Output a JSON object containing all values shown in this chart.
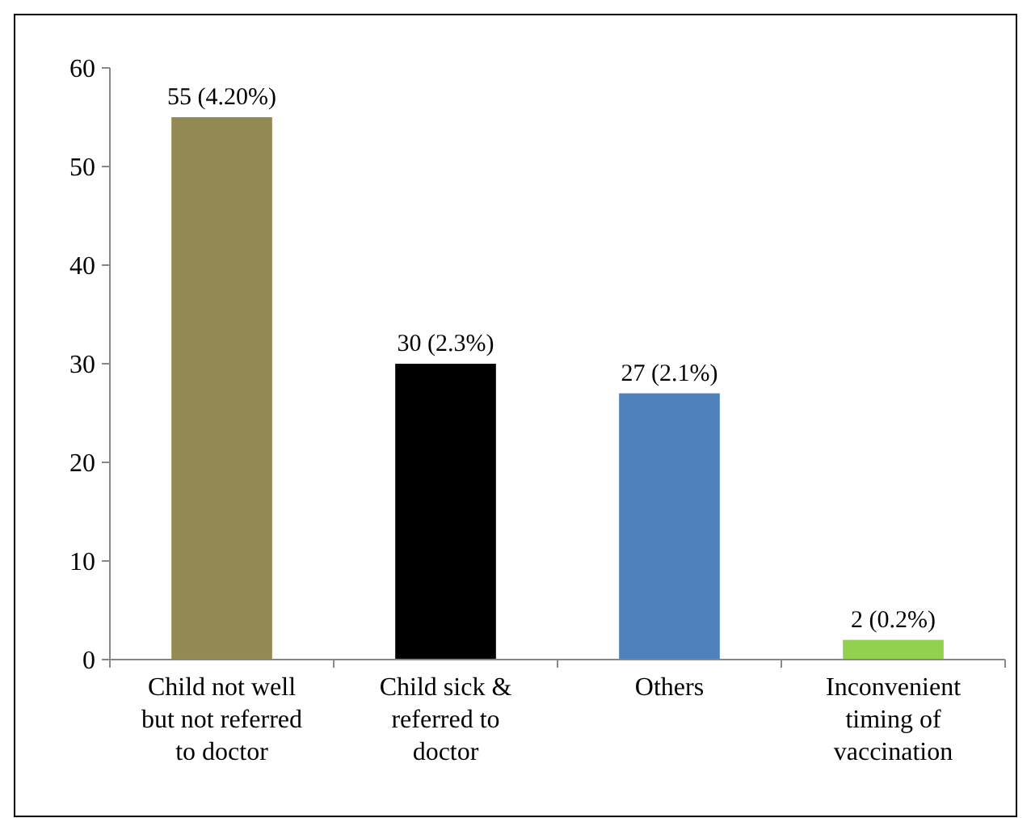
{
  "chart_data": {
    "type": "bar",
    "categories": [
      "Child not well but not referred to doctor",
      "Child sick & referred to doctor",
      "Others",
      "Inconvenient timing of vaccination"
    ],
    "values": [
      55,
      30,
      27,
      2
    ],
    "colors": [
      "#938953",
      "#000000",
      "#4f81bd",
      "#92d050"
    ],
    "value_labels": [
      "55 (4.20%)",
      "30 (2.3%)",
      "27 (2.1%)",
      "2 (0.2%)"
    ],
    "ylim": [
      0,
      60
    ],
    "yticks": [
      0,
      10,
      20,
      30,
      40,
      50,
      60
    ],
    "grid": false
  }
}
